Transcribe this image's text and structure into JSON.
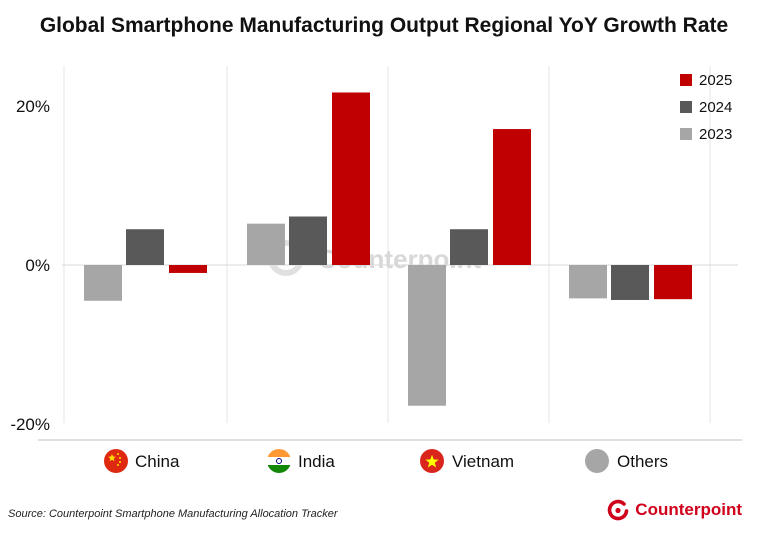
{
  "title": "Global Smartphone Manufacturing Output Regional YoY Growth Rate",
  "source": "Source: Counterpoint Smartphone Manufacturing Allocation Tracker",
  "brand": "Counterpoint",
  "watermark": "Counterpoint",
  "colors": {
    "2023": "#a6a6a6",
    "2024": "#595959",
    "2025": "#c00000",
    "brand": "#d0021b"
  },
  "chart_data": {
    "type": "bar",
    "title": "Global Smartphone Manufacturing Output Regional YoY Growth Rate",
    "xlabel": "",
    "ylabel": "",
    "categories": [
      "China",
      "India",
      "Vietnam",
      "Others"
    ],
    "series": [
      {
        "name": "2023",
        "values": [
          -4.5,
          5.2,
          -17.7,
          -4.2
        ]
      },
      {
        "name": "2024",
        "values": [
          4.5,
          6.1,
          4.5,
          -4.4
        ]
      },
      {
        "name": "2025",
        "values": [
          -1.0,
          21.7,
          17.1,
          -4.3
        ]
      }
    ],
    "ylim": [
      -20,
      25
    ],
    "yticks": [
      -20,
      0,
      20
    ],
    "ytick_labels": [
      "-20%",
      "0%",
      "20%"
    ],
    "legend": {
      "placement": "top-right",
      "entries": [
        "2025",
        "2024",
        "2023"
      ]
    },
    "grid": "vertical separators between categories",
    "category_icons": [
      "flag-china",
      "flag-india",
      "flag-vietnam",
      "gray-circle"
    ]
  }
}
